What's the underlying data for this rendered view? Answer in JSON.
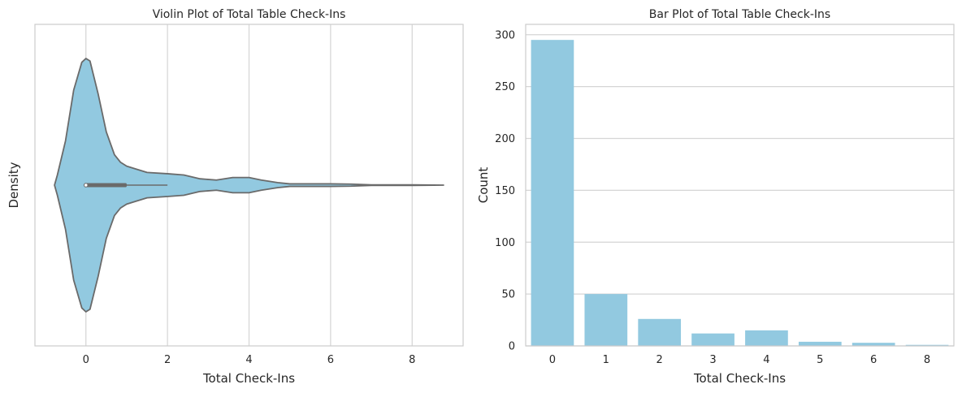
{
  "colors": {
    "fill": "#92c9e0",
    "outline": "#6a6a6a",
    "grid": "#d5d5d5",
    "frame": "#cccccc"
  },
  "chart_data": [
    {
      "type": "violin",
      "title": "Violin Plot of Total Table Check-Ins",
      "xlabel": "Total Check-Ins",
      "ylabel": "Density",
      "xlim": [
        -1.25,
        9.25
      ],
      "xticks": [
        0,
        2,
        4,
        6,
        8
      ],
      "grid": "vertical",
      "density_profile": {
        "x": [
          -0.77,
          -0.7,
          -0.5,
          -0.3,
          -0.1,
          0.0,
          0.1,
          0.3,
          0.5,
          0.7,
          0.85,
          1.0,
          1.2,
          1.5,
          2.0,
          2.4,
          2.8,
          3.2,
          3.6,
          4.0,
          4.3,
          4.7,
          5.0,
          5.5,
          6.0,
          6.5,
          7.0,
          8.0,
          8.77
        ],
        "half_width": [
          0.0,
          0.08,
          0.35,
          0.75,
          0.97,
          1.0,
          0.98,
          0.72,
          0.42,
          0.24,
          0.18,
          0.15,
          0.13,
          0.1,
          0.09,
          0.08,
          0.05,
          0.04,
          0.06,
          0.06,
          0.04,
          0.02,
          0.01,
          0.01,
          0.01,
          0.008,
          0.002,
          0.002,
          0.0
        ]
      },
      "box": {
        "q1": 0,
        "median": 0,
        "q3": 1,
        "whisker_low": 0,
        "whisker_high": 2
      }
    },
    {
      "type": "bar",
      "title": "Bar Plot of Total Table Check-Ins",
      "xlabel": "Total Check-Ins",
      "ylabel": "Count",
      "categories": [
        "0",
        "1",
        "2",
        "3",
        "4",
        "5",
        "6",
        "8"
      ],
      "values": [
        295,
        50,
        26,
        12,
        15,
        4,
        3,
        1
      ],
      "ylim": [
        0,
        310
      ],
      "yticks": [
        0,
        50,
        100,
        150,
        200,
        250,
        300
      ],
      "grid": "horizontal"
    }
  ]
}
